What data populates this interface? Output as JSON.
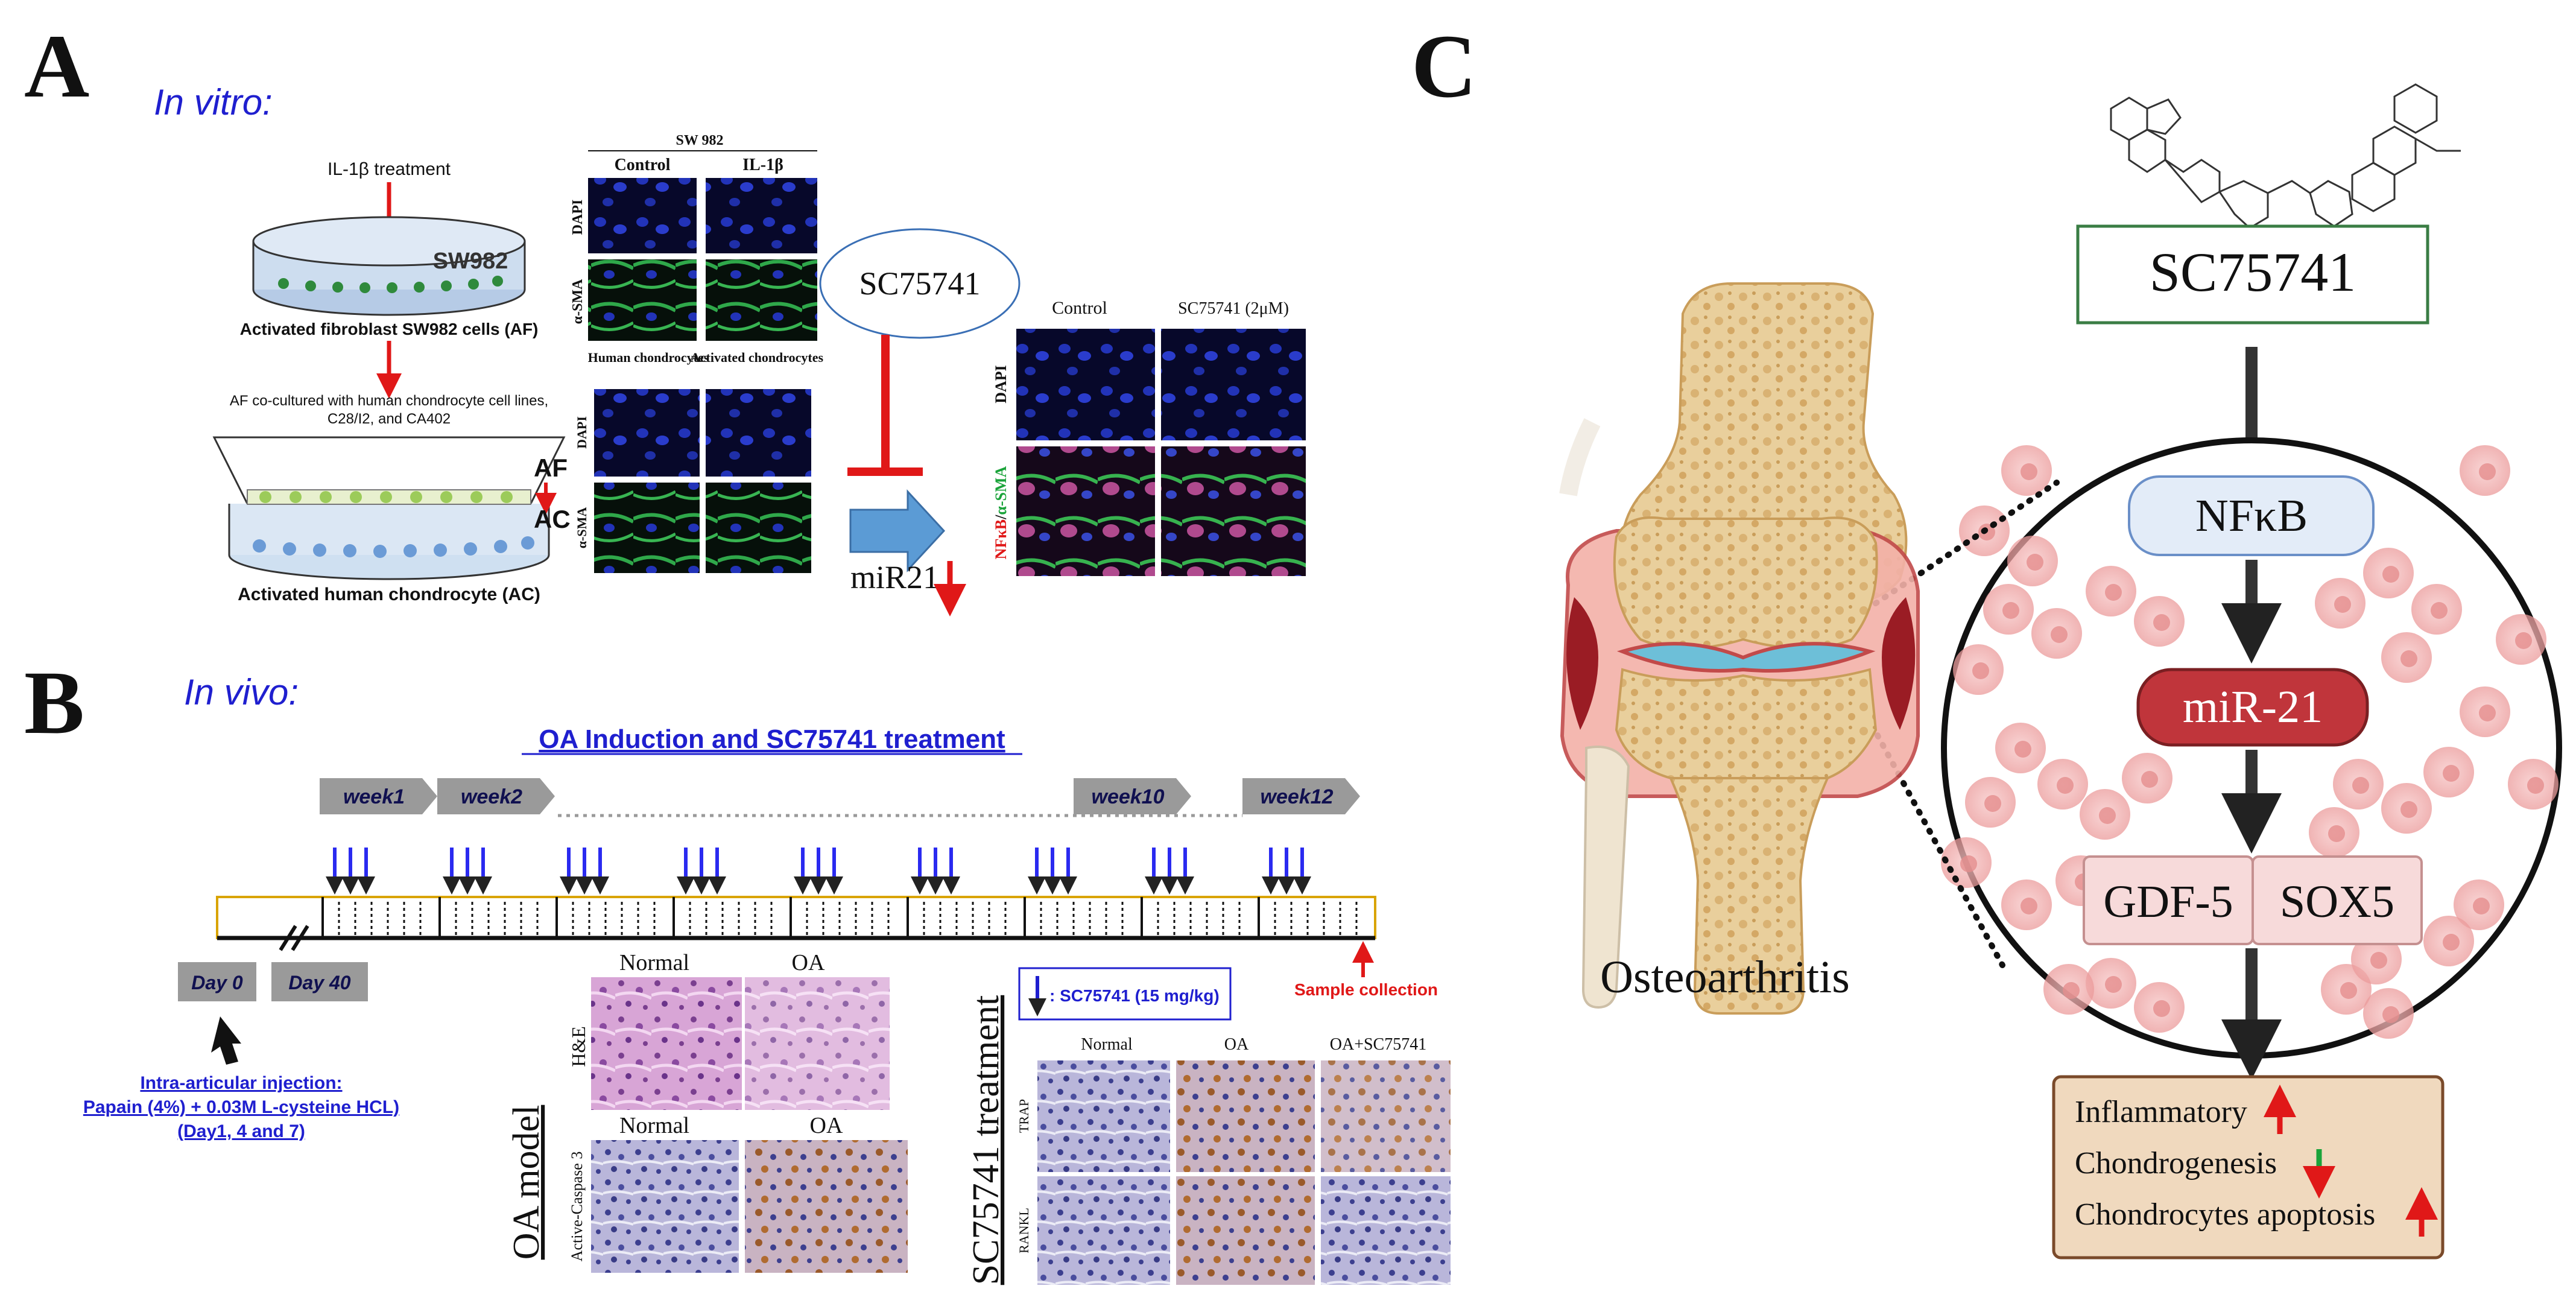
{
  "panel_a": {
    "letter": "A",
    "subtitle": "In vitro:",
    "treatment_label": "IL-1β treatment",
    "dish_top_label": "SW982",
    "af_caption": "Activated fibroblast SW982 cells (AF)",
    "coculture_caption": "AF co-cultured with human chondrocyte cell lines, C28/I2, and CA402",
    "af_label": "AF",
    "ac_label": "AC",
    "ac_caption": "Activated human chondrocyte (AC)",
    "grid1_title": "SW 982",
    "grid1_col_control": "Control",
    "grid1_col_il1b": "IL-1β",
    "grid_row_dapi": "DAPI",
    "grid_row_asma": "α-SMA",
    "grid2_col_human": "Human chondrocytes",
    "grid2_col_activated": "Activated chondrocytes",
    "drug_label": "SC75741",
    "mir_label": "miR21",
    "grid3_col_control": "Control",
    "grid3_col_sc": "SC75741 (2μM)",
    "grid3_row_dapi": "DAPI",
    "grid3_row_nfkb": "NFκB",
    "grid3_row_slash": "/",
    "grid3_row_asma": "α-SMA"
  },
  "panel_b": {
    "letter": "B",
    "subtitle": "In vivo:",
    "title": "OA Induction and SC75741 treatment",
    "weeks": [
      "week1",
      "week2",
      "week10",
      "week12"
    ],
    "day0": "Day 0",
    "day40": "Day 40",
    "injection_title": "Intra-articular injection:",
    "injection_line2": "Papain (4%) + 0.03M L-cysteine HCL)",
    "injection_line3": "(Day1, 4 and 7)",
    "dose_legend": ": SC75741 (15 mg/kg)",
    "sample_collection": "Sample collection",
    "oa_model_label": "OA model",
    "oa_col_normal": "Normal",
    "oa_col_oa": "OA",
    "oa_row_he": "H&E",
    "oa_row_caspase": "Active-Caspase 3",
    "treat_label": "SC75741 treatment",
    "treat_col_normal": "Normal",
    "treat_col_oa": "OA",
    "treat_col_combo": "OA+SC75741",
    "treat_row_trap": "TRAP",
    "treat_row_rankl": "RANKL"
  },
  "panel_c": {
    "letter": "C",
    "drug_label": "SC75741",
    "nfkb_label": "NFκB",
    "mir_label": "miR-21",
    "gdf_label": "GDF-5",
    "sox_label": "SOX5",
    "joint_label": "Osteoarthritis",
    "outcome_1": "Inflammatory",
    "outcome_2": "Chondrogenesis",
    "outcome_3": "Chondrocytes apoptosis"
  },
  "colors": {
    "blue_text": "#1f1fcf",
    "red_arrow": "#e01818",
    "green_arrow": "#1aa33a",
    "dark_red_box": "#c0353b",
    "nfkb_box": "#e3ecf8",
    "drug_box_border": "#3a7d44",
    "outcome_box": "#f0d9be",
    "gray_week": "#9a9a9a",
    "gold_line": "#d9a400",
    "micro_blue": "#1b2a8c",
    "micro_green": "#2fa84a",
    "stain_pink": "#c98bd0"
  },
  "icons": [
    "red-down-arrow-icon",
    "blue-down-arrow-icon",
    "black-up-arrow-icon",
    "inhibition-bar-icon",
    "blue-block-arrow-icon",
    "benzimidazole-structure-icon"
  ]
}
